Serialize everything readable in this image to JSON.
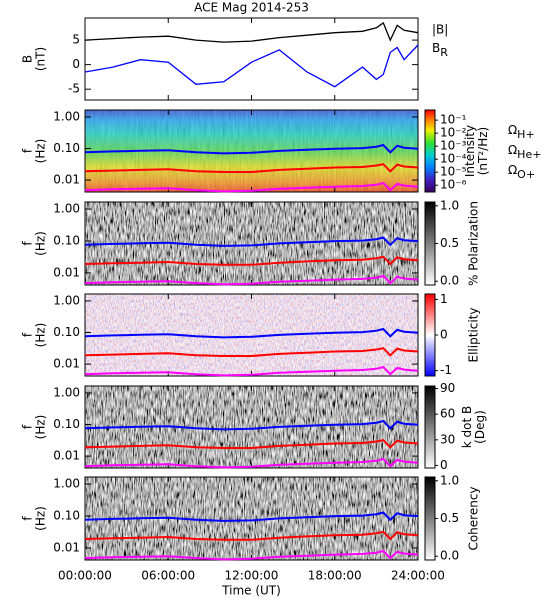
{
  "chart_data": [
    {
      "type": "line",
      "title": "ACE Mag 2014-253",
      "ylabel": [
        "B",
        "(nT)"
      ],
      "x": [
        0,
        2,
        4,
        6,
        8,
        10,
        12,
        14,
        16,
        18,
        20,
        21,
        21.5,
        22,
        22.5,
        23,
        24
      ],
      "xlim": [
        0,
        24
      ],
      "ylim": [
        -7.2,
        9.5
      ],
      "yticks": [
        5,
        0,
        -5
      ],
      "series": [
        {
          "name": "|B|",
          "color": "#000000",
          "values": [
            5.0,
            5.3,
            5.6,
            5.8,
            5.0,
            4.6,
            4.8,
            5.5,
            6.0,
            6.5,
            6.8,
            7.5,
            8.5,
            5.0,
            8.0,
            7.0,
            6.5
          ]
        },
        {
          "name": "BR",
          "color": "#0000ff",
          "values": [
            -1.5,
            -0.5,
            1.0,
            0.5,
            -4.0,
            -3.5,
            0.5,
            3.0,
            -1.5,
            -4.5,
            -0.5,
            -3.0,
            -2.0,
            2.5,
            3.5,
            1.0,
            4.0
          ]
        }
      ]
    },
    {
      "type": "spectrogram",
      "ylabel": [
        "f",
        "(Hz)"
      ],
      "ylog": true,
      "ylim": [
        0.0042,
        1.66
      ],
      "yticks": [
        {
          "value": 1,
          "label": "1.00"
        },
        {
          "value": 0.1,
          "label": "0.10"
        },
        {
          "value": 0.01,
          "label": "0.01"
        }
      ],
      "colormap": "rainbow",
      "colorbar": {
        "label": [
          "Intensity",
          "(nT²/Hz)"
        ],
        "log": true,
        "lim": [
          3e-07,
          0.6
        ],
        "ticks": [
          {
            "value": 0.1,
            "label": "10⁻¹"
          },
          {
            "value": 0.01,
            "label": "10⁻²"
          },
          {
            "value": 0.001,
            "label": "10⁻³"
          },
          {
            "value": 0.0001,
            "label": "10⁻⁴"
          },
          {
            "value": 1e-05,
            "label": "10⁻⁵"
          },
          {
            "value": 1e-06,
            "label": "10⁻⁶"
          }
        ]
      },
      "x": [
        0,
        2,
        4,
        6,
        8,
        10,
        12,
        14,
        16,
        18,
        20,
        21,
        21.5,
        22,
        22.5,
        23,
        24
      ],
      "series": [
        {
          "name": "ΩH+",
          "color": "#0000ff",
          "values": [
            0.076,
            0.081,
            0.085,
            0.088,
            0.076,
            0.07,
            0.073,
            0.084,
            0.091,
            0.099,
            0.103,
            0.114,
            0.129,
            0.076,
            0.122,
            0.106,
            0.099
          ]
        },
        {
          "name": "ΩHe+",
          "color": "#ff0000",
          "values": [
            0.019,
            0.02,
            0.021,
            0.022,
            0.019,
            0.018,
            0.018,
            0.021,
            0.023,
            0.025,
            0.026,
            0.029,
            0.032,
            0.019,
            0.031,
            0.027,
            0.025
          ]
        },
        {
          "name": "ΩO+",
          "color": "#ff00ff",
          "values": [
            0.0048,
            0.0051,
            0.0053,
            0.0055,
            0.0048,
            0.0044,
            0.0046,
            0.0053,
            0.0057,
            0.0062,
            0.0065,
            0.0071,
            0.0081,
            0.0048,
            0.0076,
            0.0067,
            0.0062
          ]
        }
      ]
    },
    {
      "type": "spectrogram",
      "ylabel": [
        "f",
        "(Hz)"
      ],
      "ylog": true,
      "ylim": [
        0.0042,
        1.66
      ],
      "yticks": [
        {
          "value": 1,
          "label": "1.00"
        },
        {
          "value": 0.1,
          "label": "0.10"
        },
        {
          "value": 0.01,
          "label": "0.01"
        }
      ],
      "colormap": "gray",
      "colorbar": {
        "label": [
          "% Polarization"
        ],
        "log": false,
        "lim": [
          -0.05,
          1.05
        ],
        "ticks": [
          {
            "value": 1,
            "label": "1.0"
          },
          {
            "value": 0.5,
            "label": "0.5"
          },
          {
            "value": 0,
            "label": "0.0"
          }
        ]
      }
    },
    {
      "type": "spectrogram",
      "ylabel": [
        "f",
        "(Hz)"
      ],
      "ylog": true,
      "ylim": [
        0.0042,
        1.66
      ],
      "yticks": [
        {
          "value": 1,
          "label": "1.00"
        },
        {
          "value": 0.1,
          "label": "0.10"
        },
        {
          "value": 0.01,
          "label": "0.01"
        }
      ],
      "colormap": "bwr",
      "colorbar": {
        "label": [
          "Ellipticity"
        ],
        "log": false,
        "lim": [
          -1.15,
          1.15
        ],
        "ticks": [
          1,
          0,
          -1
        ]
      }
    },
    {
      "type": "spectrogram",
      "ylabel": [
        "f",
        "(Hz)"
      ],
      "ylog": true,
      "ylim": [
        0.0042,
        1.66
      ],
      "yticks": [
        {
          "value": 1,
          "label": "1.00"
        },
        {
          "value": 0.1,
          "label": "0.10"
        },
        {
          "value": 0.01,
          "label": "0.01"
        }
      ],
      "colormap": "gray",
      "colorbar": {
        "label": [
          "k dot B",
          "(Deg)"
        ],
        "log": false,
        "lim": [
          -3,
          93
        ],
        "ticks": [
          90,
          60,
          30,
          0
        ]
      }
    },
    {
      "type": "spectrogram",
      "ylabel": [
        "f",
        "(Hz)"
      ],
      "ylog": true,
      "ylim": [
        0.0042,
        1.66
      ],
      "yticks": [
        {
          "value": 1,
          "label": "1.00"
        },
        {
          "value": 0.1,
          "label": "0.10"
        },
        {
          "value": 0.01,
          "label": "0.01"
        }
      ],
      "colormap": "gray",
      "colorbar": {
        "label": [
          "Coherency"
        ],
        "log": false,
        "lim": [
          -0.05,
          1.05
        ],
        "ticks": [
          {
            "value": 1,
            "label": "1.0"
          },
          {
            "value": 0.5,
            "label": "0.5"
          },
          {
            "value": 0,
            "label": "0.0"
          }
        ]
      },
      "xlabel": "Time (UT)",
      "xticks": [
        {
          "value": 0,
          "label": "00:00:00"
        },
        {
          "value": 6,
          "label": "06:00:00"
        },
        {
          "value": 12,
          "label": "12:00:00"
        },
        {
          "value": 18,
          "label": "18:00:00"
        },
        {
          "value": 24,
          "label": "24:00:00"
        }
      ]
    }
  ]
}
